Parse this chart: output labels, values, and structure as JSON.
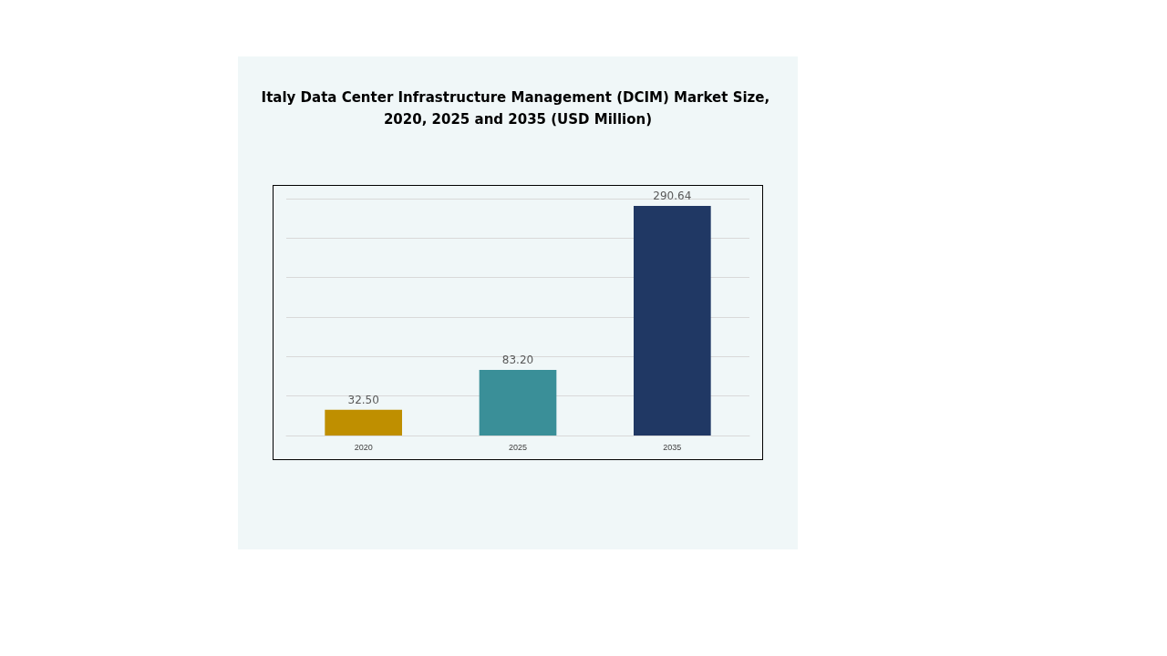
{
  "chart_data": {
    "type": "bar",
    "title": "Italy Data Center Infrastructure Management (DCIM) Market Size, 2020, 2025 and 2035 (USD Million)",
    "categories": [
      "2020",
      "2025",
      "2035"
    ],
    "values": [
      32.5,
      83.2,
      290.64
    ],
    "colors": [
      "#bf8f00",
      "#3a8f98",
      "#203864"
    ],
    "value_labels": [
      "32.50",
      "83.20",
      "290.64"
    ],
    "grid": "y"
  }
}
